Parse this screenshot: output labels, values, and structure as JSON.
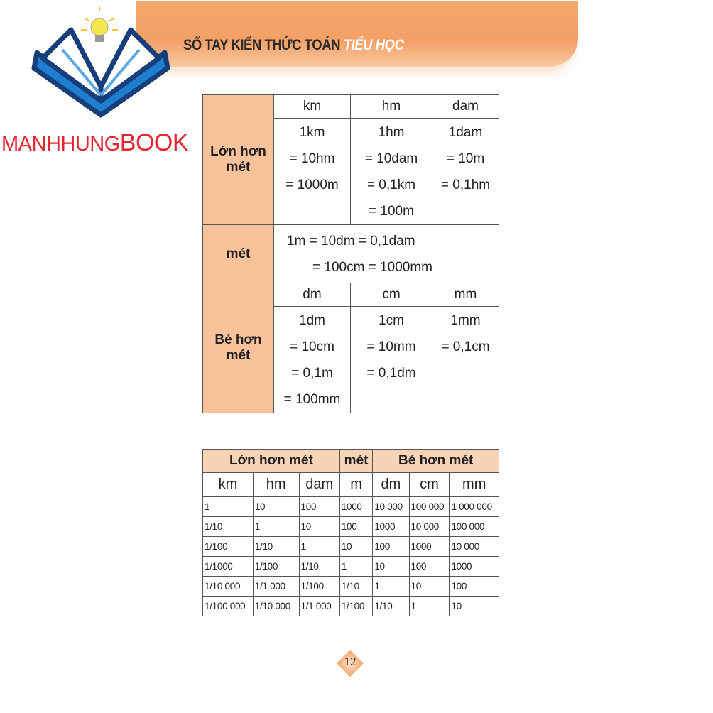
{
  "header": {
    "title_main": "SỔ TAY KIẾN THỨC TOÁN",
    "title_highlight": "TIỂU HỌC"
  },
  "logo": {
    "text_part1": "MANHHUNG",
    "text_part2": "BOOK"
  },
  "table1": {
    "larger": {
      "label": "Lớn hơn mét",
      "units": [
        "km",
        "hm",
        "dam"
      ],
      "values": [
        [
          "1km",
          "= 10hm",
          "= 1000m"
        ],
        [
          "1hm",
          "= 10dam",
          "= 0,1km",
          "= 100m"
        ],
        [
          "1dam",
          "= 10m",
          "= 0,1hm"
        ]
      ]
    },
    "meter": {
      "label": "mét",
      "lines": [
        "1m = 10dm = 0,1dam",
        "= 100cm = 1000mm"
      ]
    },
    "smaller": {
      "label": "Bé hơn mét",
      "units": [
        "dm",
        "cm",
        "mm"
      ],
      "values": [
        [
          "1dm",
          "= 10cm",
          "= 0,1m",
          "= 100mm"
        ],
        [
          "1cm",
          "= 10mm",
          "= 0,1dm"
        ],
        [
          "1mm",
          "= 0,1cm"
        ]
      ]
    }
  },
  "table2": {
    "groups": [
      "Lớn hơn mét",
      "mét",
      "Bé hơn mét"
    ],
    "units": [
      "km",
      "hm",
      "dam",
      "m",
      "dm",
      "cm",
      "mm"
    ],
    "rows": [
      [
        "1",
        "10",
        "100",
        "1000",
        "10 000",
        "100 000",
        "1 000 000"
      ],
      [
        "1/10",
        "1",
        "10",
        "100",
        "1000",
        "10 000",
        "100 000"
      ],
      [
        "1/100",
        "1/10",
        "1",
        "10",
        "100",
        "1000",
        "10 000"
      ],
      [
        "1/1000",
        "1/100",
        "1/10",
        "1",
        "10",
        "100",
        "1000"
      ],
      [
        "1/10 000",
        "1/1 000",
        "1/100",
        "1/10",
        "1",
        "10",
        "100"
      ],
      [
        "1/100 000",
        "1/10 000",
        "1/1 000",
        "1/100",
        "1/10",
        "1",
        "10"
      ]
    ]
  },
  "page_number": "12",
  "colors": {
    "banner": "#f3a066",
    "side_cell": "#f8c39b",
    "group_header": "#f8d4b7",
    "brand_red": "#e3262f",
    "logo_blue": "#1a5fa8"
  }
}
